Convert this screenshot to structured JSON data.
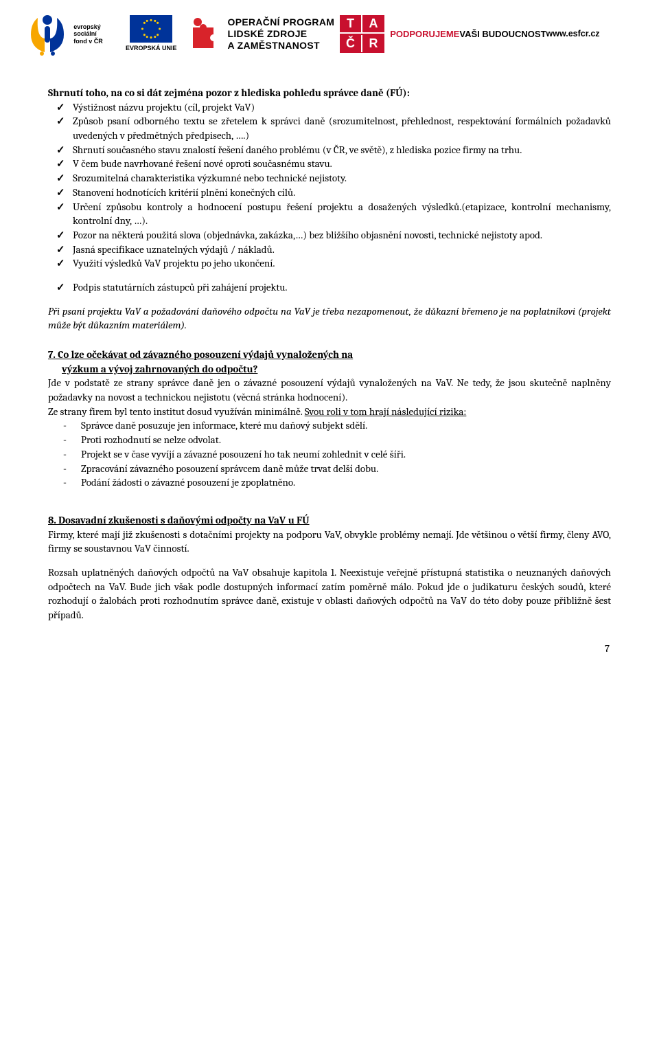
{
  "logos": {
    "esf": {
      "top": "evropský",
      "mid": "sociální",
      "bot": "fond v ČR",
      "eu_label": "EVROPSKÁ UNIE"
    },
    "oplz": {
      "line1": "OPERAČNÍ PROGRAM",
      "line2": "LIDSKÉ ZDROJE",
      "line3": "A ZAMĚSTNANOST"
    },
    "tacr": {
      "a": "T",
      "b": "A",
      "c": "Č",
      "d": "R"
    },
    "podp": {
      "line1": "PODPORUJEME",
      "line2": "VAŠI BUDOUCNOST",
      "line3": "www.esfcr.cz"
    }
  },
  "intro_heading": "Shrnutí toho, na co si dát zejména pozor z hlediska pohledu správce daně (FÚ):",
  "checks_main": [
    "Výstižnost názvu projektu (cíl, projekt VaV)",
    "Způsob psaní odborného textu se zřetelem k správci daně (srozumitelnost, přehlednost,  respektování formálních požadavků uvedených v předmětných předpisech, ….)",
    " Shrnutí současného stavu znalostí řešení daného problému (v ČR, ve světě), z hlediska pozice firmy na trhu.",
    "V čem bude navrhované řešení nové  oproti současnému stavu.",
    "Srozumitelná charakteristika výzkumné nebo technické nejistoty.",
    "Stanovení hodnotících kritérií plnění konečných cílů.",
    "Určení způsobu kontroly a hodnocení postupu řešení projektu a dosažených výsledků.(etapizace, kontrolní mechanismy, kontrolní dny, …).",
    "Pozor na některá použitá slova (objednávka, zakázka,…) bez bližšího objasnění novosti, technické nejistoty apod.",
    "Jasná specifikace uznatelných výdajů / nákladů.",
    "Využití výsledků VaV projektu po jeho ukončení."
  ],
  "checks_extra": [
    "Podpis statutárních zástupců při zahájení projektu."
  ],
  "italic_note": "Při psaní projektu VaV a požadování daňového odpočtu na VaV je třeba nezapomenout, že důkazní břemeno je na poplatníkovi (projekt může být důkazním materiálem).",
  "sec7": {
    "h1": "7. Co lze očekávat od závazného posouzení výdajů vynaložených na",
    "h2": "výzkum a vývoj zahrnovaných do odpočtu?",
    "p1": "Jde v podstatě ze strany správce daně jen o závazné posouzení výdajů vynaložených na VaV. Ne tedy, že jsou skutečně naplněny požadavky na novost a technickou nejistotu (věcná stránka hodnocení).",
    "p2a": "Ze strany firem byl tento institut dosud využíván minimálně. ",
    "p2b": "Svou roli v tom hrají následující rizika:",
    "dashes": [
      "Správce daně posuzuje jen informace, které mu daňový subjekt sdělí.",
      "Proti rozhodnutí se nelze odvolat.",
      "Projekt se v čase vyvíjí a závazné posouzení ho tak neumí zohlednit v celé šíři.",
      "Zpracování závazného posouzení správcem daně může trvat delší dobu.",
      "Podání žádosti o závazné posouzení je zpoplatněno."
    ]
  },
  "sec8": {
    "h": "8. Dosavadní zkušenosti s daňovými odpočty na VaV u FÚ",
    "p1": "Firmy, které mají již zkušenosti s dotačními projekty na podporu VaV, obvykle problémy nemají. Jde většinou o větší firmy, členy AVO, firmy se soustavnou VaV činností.",
    "p2": "Rozsah uplatněných daňových odpočtů na VaV obsahuje kapitola 1. Neexistuje veřejně přístupná statistika o neuznaných daňových odpočtech na VaV. Bude jich však podle dostupných informací zatím poměrně málo. Pokud jde o judikaturu českých soudů, které rozhodují o žalobách proti rozhodnutím správce daně, existuje v oblasti daňových odpočtů na VaV do této doby pouze přibližně šest případů."
  },
  "page_number": "7",
  "colors": {
    "esf_yellow": "#f7a600",
    "esf_blue": "#003399",
    "tacr_red": "#c8102e",
    "oplz_red": "#d8232a",
    "text": "#000000"
  }
}
